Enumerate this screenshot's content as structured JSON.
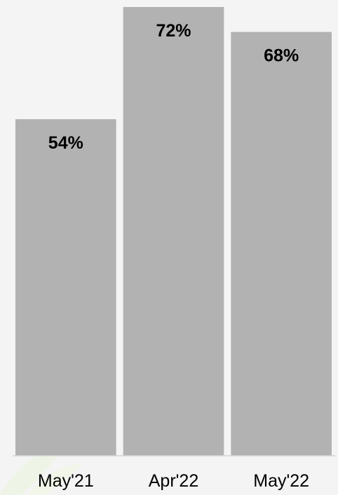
{
  "chart_data": {
    "type": "bar",
    "categories": [
      "May'21",
      "Apr'22",
      "May'22"
    ],
    "values": [
      54,
      72,
      68
    ],
    "value_labels": [
      "54%",
      "72%",
      "68%"
    ],
    "ylim": [
      0,
      72
    ],
    "grid": false,
    "colors": {
      "bar": "#b2b2b2",
      "background": "#f4f4f4",
      "label": "#000000"
    }
  }
}
